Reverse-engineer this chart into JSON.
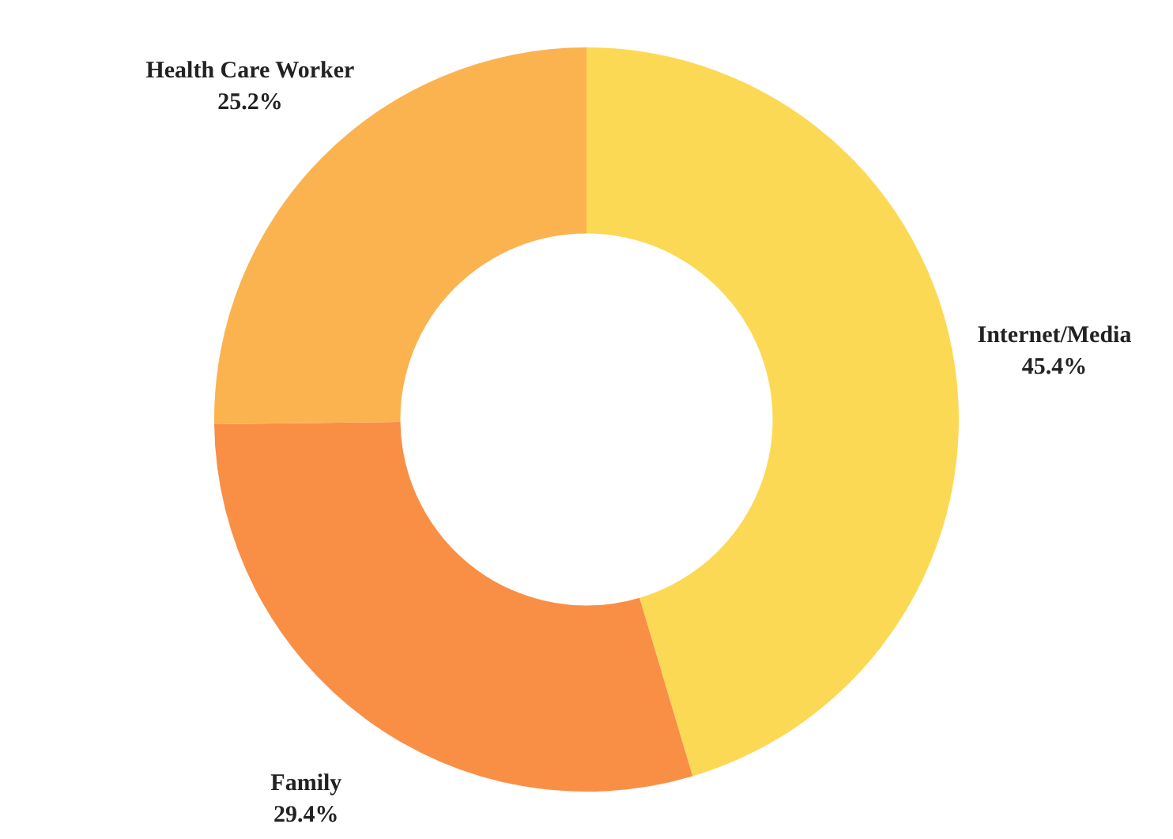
{
  "chart_data": {
    "type": "donut",
    "categories": [
      "Internet/Media",
      "Family",
      "Health Care Worker"
    ],
    "values": [
      45.4,
      29.4,
      25.2
    ],
    "value_labels": [
      "45.4%",
      "29.4%",
      "25.2%"
    ],
    "colors": [
      "#fcd955",
      "#f98f45",
      "#fbb350"
    ],
    "legend": false
  }
}
